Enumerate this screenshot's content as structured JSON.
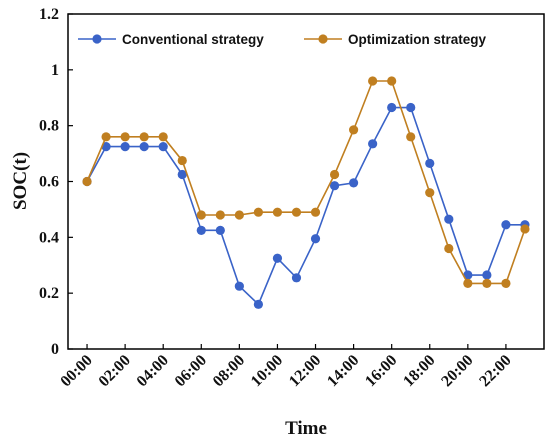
{
  "chart_data": {
    "type": "line",
    "xlabel": "Time",
    "ylabel": "SOC(t)",
    "ylim": [
      0,
      1.2
    ],
    "yticks": [
      "0",
      "0.2",
      "0.4",
      "0.6",
      "0.8",
      "1",
      "1.2"
    ],
    "yticks_values": [
      0,
      0.2,
      0.4,
      0.6,
      0.8,
      1.0,
      1.2
    ],
    "x_hours": [
      0,
      1,
      2,
      3,
      4,
      5,
      6,
      7,
      8,
      9,
      10,
      11,
      12,
      13,
      14,
      15,
      16,
      17,
      18,
      19,
      20,
      21,
      22,
      23
    ],
    "xlim": [
      -1,
      24
    ],
    "xtick_labels": [
      "00:00",
      "02:00",
      "04:00",
      "06:00",
      "08:00",
      "10:00",
      "12:00",
      "14:00",
      "16:00",
      "18:00",
      "20:00",
      "22:00"
    ],
    "xtick_hours": [
      0,
      2,
      4,
      6,
      8,
      10,
      12,
      14,
      16,
      18,
      20,
      22
    ],
    "legend_position": "top",
    "series": [
      {
        "name": "Conventional strategy",
        "color": "#3a63c8",
        "values": [
          0.6,
          0.725,
          0.725,
          0.725,
          0.725,
          0.625,
          0.425,
          0.425,
          0.225,
          0.16,
          0.325,
          0.255,
          0.395,
          0.585,
          0.595,
          0.735,
          0.865,
          0.865,
          0.665,
          0.465,
          0.265,
          0.265,
          0.445,
          0.445
        ]
      },
      {
        "name": "Optimization strategy",
        "color": "#c07f20",
        "values": [
          0.6,
          0.76,
          0.76,
          0.76,
          0.76,
          0.675,
          0.48,
          0.48,
          0.48,
          0.49,
          0.49,
          0.49,
          0.49,
          0.625,
          0.785,
          0.96,
          0.96,
          0.76,
          0.56,
          0.36,
          0.235,
          0.235,
          0.235,
          0.43
        ]
      }
    ]
  }
}
